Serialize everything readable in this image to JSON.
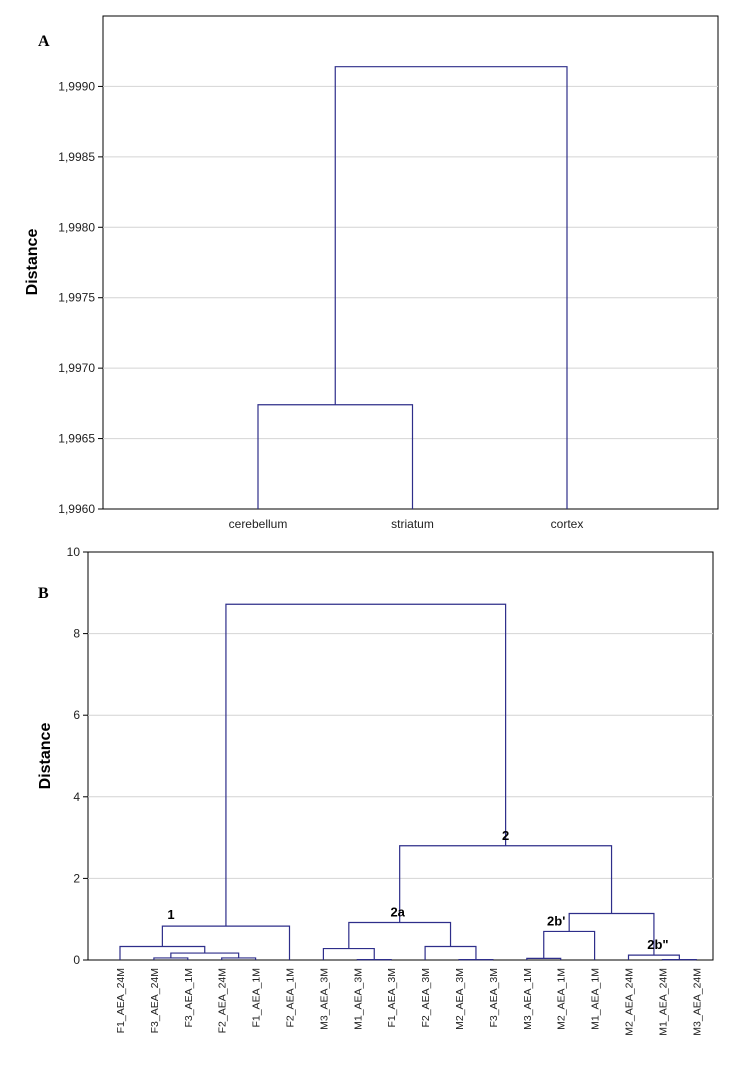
{
  "colors": {
    "link": "#2e2e8a",
    "grid": "#d4d4d4",
    "frame": "#000000",
    "text": "#222222"
  },
  "chart_data": [
    {
      "type": "dendrogram",
      "panel": "A",
      "ylabel": "Distance",
      "ylim": [
        1.996,
        1.9995
      ],
      "yticks": [
        1.996,
        1.9965,
        1.997,
        1.9975,
        1.998,
        1.9985,
        1.999
      ],
      "ytick_labels": [
        "1,9960",
        "1,9965",
        "1,9970",
        "1,9975",
        "1,9980",
        "1,9985",
        "1,9990"
      ],
      "grid": true,
      "leaves": [
        "cerebellum",
        "striatum",
        "cortex"
      ],
      "merges": [
        {
          "left": 0,
          "right": 1,
          "height": 1.99674
        },
        {
          "left": 3,
          "right": 2,
          "height": 1.99914
        }
      ],
      "annotations": []
    },
    {
      "type": "dendrogram",
      "panel": "B",
      "ylabel": "Distance",
      "ylim": [
        0,
        10
      ],
      "yticks": [
        0,
        2,
        4,
        6,
        8,
        10
      ],
      "ytick_labels": [
        "0",
        "2",
        "4",
        "6",
        "8",
        "10"
      ],
      "grid": true,
      "leaves": [
        "F1_AEA_24M",
        "F3_AEA_24M",
        "F3_AEA_1M",
        "F2_AEA_24M",
        "F1_AEA_1M",
        "F2_AEA_1M",
        "M3_AEA_3M",
        "M1_AEA_3M",
        "F1_AEA_3M",
        "F2_AEA_3M",
        "M2_AEA_3M",
        "F3_AEA_3M",
        "M3_AEA_1M",
        "M2_AEA_1M",
        "M1_AEA_1M",
        "M2_AEA_24M",
        "M1_AEA_24M",
        "M3_AEA_24M"
      ],
      "merges": [
        {
          "left": 3,
          "right": 4,
          "height": 0.05
        },
        {
          "left": 1,
          "right": 2,
          "height": 0.05
        },
        {
          "left": 19,
          "right": 18,
          "height": 0.17
        },
        {
          "left": 0,
          "right": 20,
          "height": 0.33
        },
        {
          "left": 21,
          "right": 5,
          "height": 0.83
        },
        {
          "left": 10,
          "right": 11,
          "height": 0.01
        },
        {
          "left": 9,
          "right": 23,
          "height": 0.33
        },
        {
          "left": 7,
          "right": 8,
          "height": 0.01
        },
        {
          "left": 6,
          "right": 25,
          "height": 0.28
        },
        {
          "left": 26,
          "right": 24,
          "height": 0.92
        },
        {
          "left": 12,
          "right": 13,
          "height": 0.04
        },
        {
          "left": 28,
          "right": 14,
          "height": 0.7
        },
        {
          "left": 16,
          "right": 17,
          "height": 0.01
        },
        {
          "left": 15,
          "right": 30,
          "height": 0.12
        },
        {
          "left": 29,
          "right": 31,
          "height": 1.14
        },
        {
          "left": 27,
          "right": 32,
          "height": 2.8
        },
        {
          "left": 22,
          "right": 33,
          "height": 8.72
        }
      ],
      "annotations": [
        {
          "text": "1",
          "merge": 4
        },
        {
          "text": "2",
          "merge": 15
        },
        {
          "text": "2a",
          "merge": 9
        },
        {
          "text": "2b'",
          "merge": 11
        },
        {
          "text": "2b\"",
          "merge": 13
        }
      ]
    }
  ]
}
